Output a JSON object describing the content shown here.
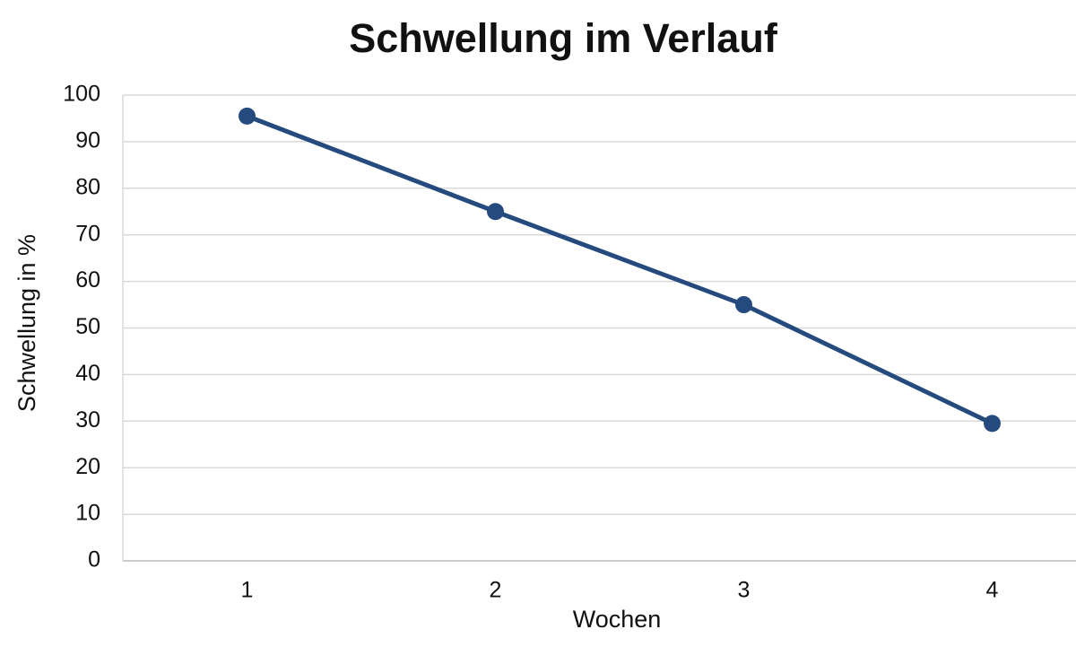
{
  "chart_data": {
    "type": "line",
    "title": "Schwellung im Verlauf",
    "x_label": "Wochen",
    "y_label": "Schwellung in %",
    "categories": [
      "1",
      "2",
      "3",
      "4"
    ],
    "series": [
      {
        "name": "Schwellung",
        "color": "#254b7e",
        "values": [
          95.5,
          75,
          55,
          29.5
        ]
      }
    ],
    "ylim": [
      0,
      100
    ],
    "yticks": [
      0,
      10,
      20,
      30,
      40,
      50,
      60,
      70,
      80,
      90,
      100
    ],
    "grid": true
  }
}
